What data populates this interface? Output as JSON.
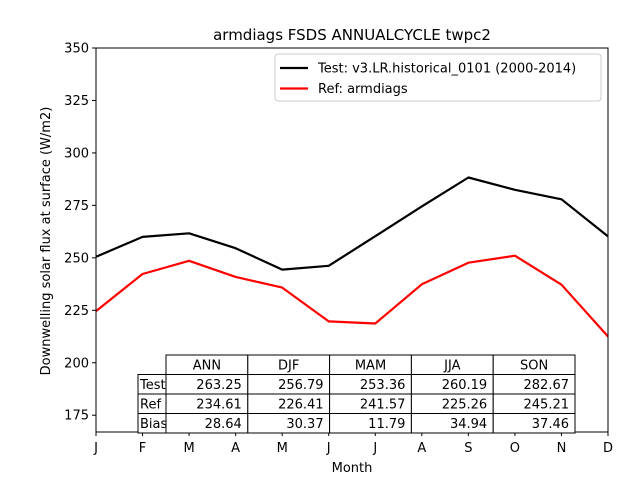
{
  "chart_data": {
    "type": "line",
    "title": "armdiags FSDS ANNUALCYCLE twpc2",
    "xlabel": "Month",
    "ylabel": "Downwelling solar flux at surface (W/m2)",
    "categories": [
      "J",
      "F",
      "M",
      "A",
      "M",
      "J",
      "J",
      "A",
      "S",
      "O",
      "N",
      "D"
    ],
    "ylim": [
      167,
      350
    ],
    "yticks": [
      175,
      200,
      225,
      250,
      275,
      300,
      325,
      350
    ],
    "series": [
      {
        "name": "Test: v3.LR.historical_0101 (2000-2014)",
        "color": "#000000",
        "values": [
          250.5,
          260.0,
          261.7,
          254.6,
          244.4,
          246.2,
          260.3,
          274.5,
          288.3,
          282.4,
          277.9,
          260.2
        ]
      },
      {
        "name": "Ref: armdiags",
        "color": "#ff0000",
        "values": [
          224.6,
          242.3,
          248.6,
          240.9,
          235.8,
          219.7,
          218.7,
          237.4,
          247.7,
          251.0,
          237.2,
          212.5
        ]
      }
    ],
    "legend_position": "upper-right",
    "table": {
      "columns": [
        "ANN",
        "DJF",
        "MAM",
        "JJA",
        "SON"
      ],
      "rows": [
        {
          "label": "Test",
          "values": [
            "263.25",
            "256.79",
            "253.36",
            "260.19",
            "282.67"
          ]
        },
        {
          "label": "Ref",
          "values": [
            "234.61",
            "226.41",
            "241.57",
            "225.26",
            "245.21"
          ]
        },
        {
          "label": "Bias",
          "values": [
            "28.64",
            "30.37",
            "11.79",
            "34.94",
            "37.46"
          ]
        }
      ]
    }
  }
}
